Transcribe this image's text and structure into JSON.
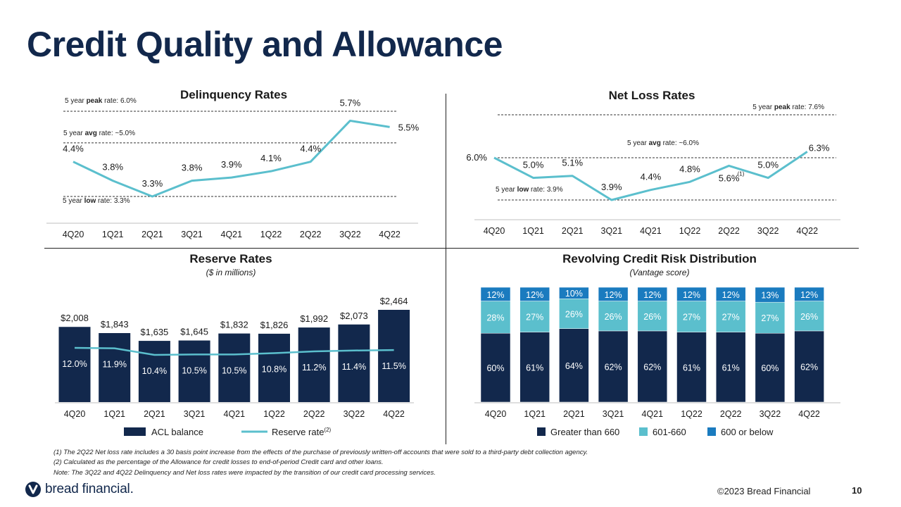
{
  "page": {
    "title": "Credit Quality and Allowance",
    "footnotes": [
      "(1) The 2Q22 Net loss rate includes a 30 basis point increase from the effects of the purchase of previously written-off accounts that were sold to a third-party debt collection agency.",
      "(2) Calculated as the percentage of the Allowance for credit losses to end-of-period Credit card and other loans.",
      "Note: The 3Q22 and 4Q22 Delinquency and Net loss rates were impacted by the transition of our credit card processing services."
    ],
    "logo_text": "bread financial.",
    "copyright": "©2023 Bread Financial",
    "page_number": "10",
    "colors": {
      "navy": "#12284c",
      "teal": "#5bbfcd",
      "blue": "#1a7bbf",
      "title": "#12284c"
    }
  },
  "chart_data": [
    {
      "type": "line",
      "title": "Delinquency Rates",
      "categories": [
        "4Q20",
        "1Q21",
        "2Q21",
        "3Q21",
        "4Q21",
        "1Q22",
        "2Q22",
        "3Q22",
        "4Q22"
      ],
      "values": [
        4.4,
        3.8,
        3.3,
        3.8,
        3.9,
        4.1,
        4.4,
        5.7,
        5.5
      ],
      "value_labels": [
        "4.4%",
        "3.8%",
        "3.3%",
        "3.8%",
        "3.9%",
        "4.1%",
        "4.4%",
        "5.7%",
        "5.5%"
      ],
      "reference_lines": [
        {
          "prefix": "5 year ",
          "bold": "peak",
          "suffix": " rate: 6.0%",
          "value": 6.0
        },
        {
          "prefix": "5 year ",
          "bold": "avg",
          "suffix": " rate: ~5.0%",
          "value": 5.0
        },
        {
          "prefix": "5 year ",
          "bold": "low",
          "suffix": " rate: 3.3%",
          "value": 3.3
        }
      ]
    },
    {
      "type": "line",
      "title": "Net Loss Rates",
      "categories": [
        "4Q20",
        "1Q21",
        "2Q21",
        "3Q21",
        "4Q21",
        "1Q22",
        "2Q22",
        "3Q22",
        "4Q22"
      ],
      "values": [
        6.0,
        5.0,
        5.1,
        3.9,
        4.4,
        4.8,
        5.6,
        5.0,
        6.3
      ],
      "value_labels": [
        "6.0%",
        "5.0%",
        "5.1%",
        "3.9%",
        "4.4%",
        "4.8%",
        "5.6%",
        "5.0%",
        "6.3%"
      ],
      "annotation": "(1)",
      "reference_lines": [
        {
          "prefix": "5 year ",
          "bold": "peak",
          "suffix": " rate: 7.6%",
          "value": 7.6
        },
        {
          "prefix": "5 year ",
          "bold": "avg",
          "suffix": " rate: ~6.0%",
          "value": 6.0
        },
        {
          "prefix": "5 year ",
          "bold": "low",
          "suffix": " rate: 3.9%",
          "value": 3.9
        }
      ]
    },
    {
      "type": "bar",
      "title": "Reserve Rates",
      "subtitle": "($ in millions)",
      "categories": [
        "4Q20",
        "1Q21",
        "2Q21",
        "3Q21",
        "4Q21",
        "1Q22",
        "2Q22",
        "3Q22",
        "4Q22"
      ],
      "series": [
        {
          "name": "ACL balance",
          "values": [
            2008,
            1843,
            1635,
            1645,
            1832,
            1826,
            1992,
            2073,
            2464
          ],
          "labels": [
            "$2,008",
            "$1,843",
            "$1,635",
            "$1,645",
            "$1,832",
            "$1,826",
            "$1,992",
            "$2,073",
            "$2,464"
          ]
        },
        {
          "name": "Reserve rate",
          "values": [
            12.0,
            11.9,
            10.4,
            10.5,
            10.5,
            10.8,
            11.2,
            11.4,
            11.5
          ],
          "labels": [
            "12.0%",
            "11.9%",
            "10.4%",
            "10.5%",
            "10.5%",
            "10.8%",
            "11.2%",
            "11.4%",
            "11.5%"
          ]
        }
      ],
      "legend": {
        "bar": "ACL balance",
        "line": "Reserve rate",
        "line_sup": "(2)"
      }
    },
    {
      "type": "bar",
      "title": "Revolving Credit Risk Distribution",
      "subtitle": "(Vantage score)",
      "categories": [
        "4Q20",
        "1Q21",
        "2Q21",
        "3Q21",
        "4Q21",
        "1Q22",
        "2Q22",
        "3Q22",
        "4Q22"
      ],
      "series": [
        {
          "name": "Greater than 660",
          "values": [
            60,
            61,
            64,
            62,
            62,
            61,
            61,
            60,
            62
          ]
        },
        {
          "name": "601-660",
          "values": [
            28,
            27,
            26,
            26,
            26,
            27,
            27,
            27,
            26
          ]
        },
        {
          "name": "600 or below",
          "values": [
            12,
            12,
            10,
            12,
            12,
            12,
            12,
            13,
            12
          ]
        }
      ]
    }
  ]
}
